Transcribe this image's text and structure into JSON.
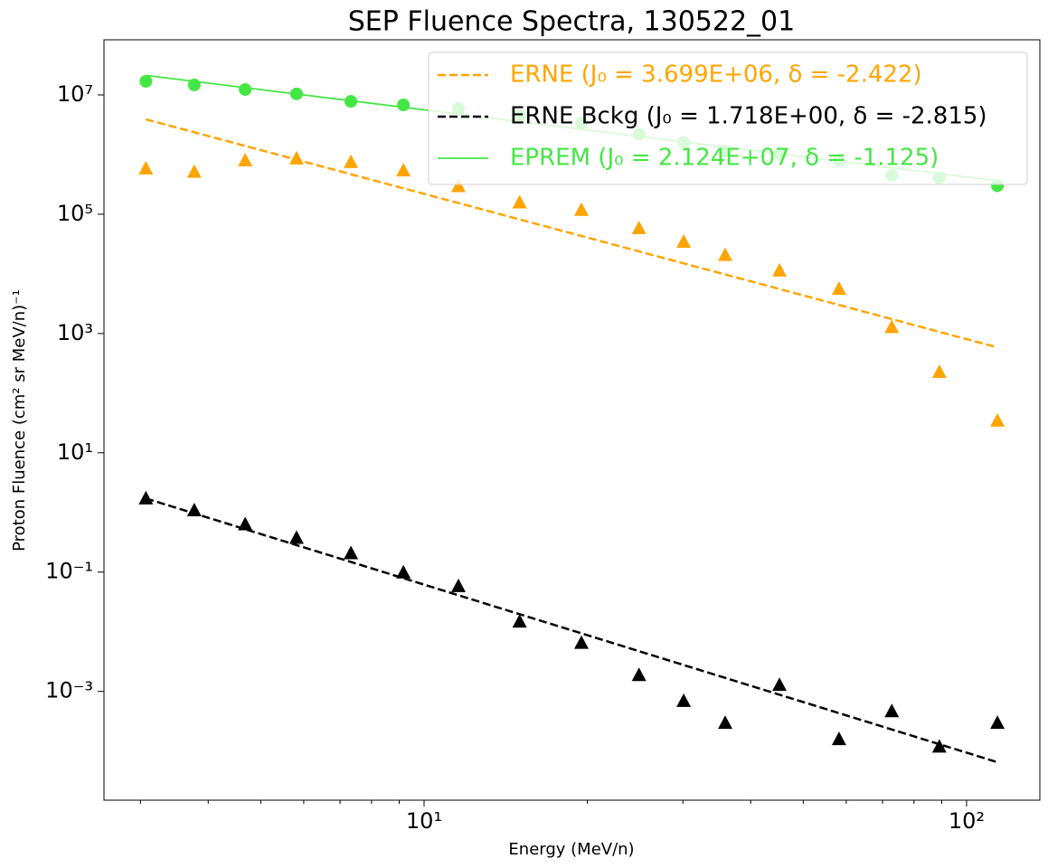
{
  "chart_data": {
    "type": "scatter",
    "title": "SEP Fluence Spectra, 130522_01",
    "xlabel": "Energy (MeV/n)",
    "ylabel": "Proton Fluence (cm² sr MeV/n)⁻¹",
    "log_x": true,
    "log_y": true,
    "legend": "upper right",
    "xlim": [
      2.57,
      136.5
    ],
    "ylim": [
      1.5e-05,
      84000000.0
    ],
    "xticks": [
      {
        "value": 10,
        "label": "10¹"
      },
      {
        "value": 100,
        "label": "10²"
      }
    ],
    "xminorticks": [
      3,
      4,
      5,
      6,
      7,
      8,
      9,
      20,
      30,
      40,
      50,
      60,
      70,
      80,
      90
    ],
    "yticks": [
      {
        "value": 0.001,
        "label": "10⁻³"
      },
      {
        "value": 0.1,
        "label": "10⁻¹"
      },
      {
        "value": 10,
        "label": "10¹"
      },
      {
        "value": 1000,
        "label": "10³"
      },
      {
        "value": 100000,
        "label": "10⁵"
      },
      {
        "value": 10000000,
        "label": "10⁷"
      }
    ],
    "x": [
      3.07,
      3.77,
      4.68,
      5.82,
      7.33,
      9.16,
      11.57,
      15.0,
      19.5,
      24.9,
      30.1,
      35.9,
      45.2,
      58.2,
      72.8,
      89.1,
      114
    ],
    "series": [
      {
        "name": "ERNE (J₀ = 3.699E+06, δ = -2.422)",
        "color": "#ffa500",
        "line_style": "dashed",
        "marker": "triangle",
        "values": [
          590000.0,
          520000.0,
          810000.0,
          870000.0,
          760000.0,
          550000.0,
          300000.0,
          160000.0,
          120000.0,
          59000.0,
          35000.0,
          21000.0,
          11500.0,
          5700.0,
          1300.0,
          230,
          35
        ],
        "line_x": [
          3.07,
          114
        ],
        "line_values": [
          3900000.0,
          585
        ]
      },
      {
        "name": "ERNE Bckg (J₀ = 1.718E+00, δ = -2.815)",
        "color": "#000000",
        "line_style": "dashed",
        "marker": "triangle",
        "values": [
          1.74,
          1.1,
          0.64,
          0.38,
          0.21,
          0.1,
          0.059,
          0.015,
          0.0066,
          0.0019,
          0.0007,
          0.0003,
          0.0013,
          0.00016,
          0.00047,
          0.00012,
          0.0003
        ],
        "line_x": [
          3.07,
          114
        ],
        "line_values": [
          1.718,
          6.5e-05
        ]
      },
      {
        "name": "EPREM (J₀ = 2.124E+07, δ = -1.125)",
        "color": "#44e644",
        "line_style": "solid",
        "marker": "circle",
        "values": [
          16900000.0,
          14700000.0,
          12300000.0,
          10400000.0,
          7800000.0,
          6800000.0,
          5900000.0,
          4500000.0,
          3400000.0,
          2200000.0,
          1600000.0,
          1150000.0,
          1040000.0,
          810000.0,
          450000.0,
          410000.0,
          300000.0
        ],
        "line_x": [
          3.07,
          114
        ],
        "line_values": [
          21240000.0,
          364000.0
        ]
      }
    ]
  }
}
